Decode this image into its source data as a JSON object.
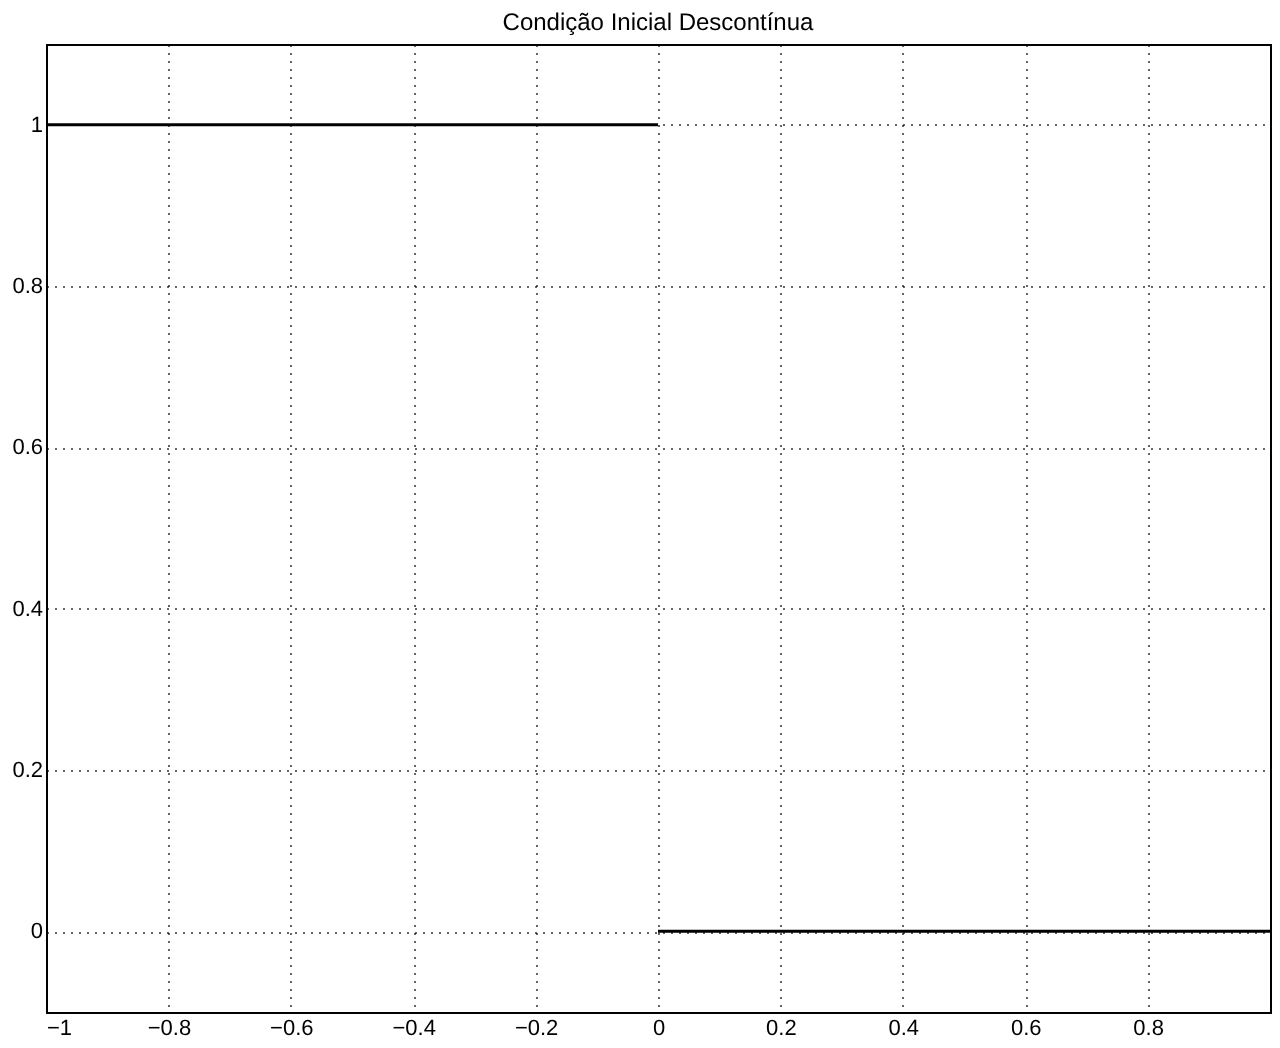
{
  "chart_data": {
    "type": "line",
    "title": "Condição Inicial Descontínua",
    "series": [
      {
        "color": "#000000",
        "x": [
          -1,
          0
        ],
        "values": [
          1,
          1
        ]
      },
      {
        "color": "#000000",
        "x": [
          0,
          1
        ],
        "values": [
          0,
          0
        ]
      }
    ],
    "xlim": [
      -1,
      1
    ],
    "xticks": [
      -1,
      -0.8,
      -0.6,
      -0.4,
      -0.2,
      0,
      0.2,
      0.4,
      0.6,
      0.8,
      {
        "value": 1,
        "label": null
      }
    ],
    "ylim": [
      -0.1,
      1.1
    ],
    "yticks": [
      0,
      0.2,
      0.4,
      0.6,
      0.8,
      1
    ],
    "grid": true,
    "line_style": "solid",
    "marker": "none"
  }
}
